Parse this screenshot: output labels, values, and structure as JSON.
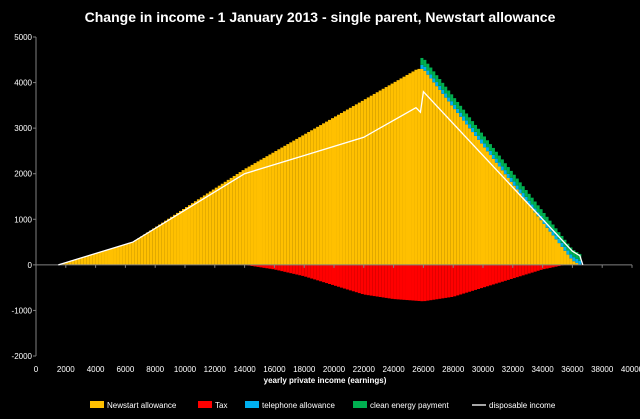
{
  "chart_data": {
    "type": "area",
    "title": "Change in income - 1 January 2013 - single parent, Newstart allowance",
    "xlabel": "yearly private income (earnings)",
    "ylabel": "",
    "xlim": [
      0,
      40000
    ],
    "ylim": [
      -2000,
      5000
    ],
    "x_ticks": [
      0,
      2000,
      4000,
      6000,
      8000,
      10000,
      12000,
      14000,
      16000,
      18000,
      20000,
      22000,
      24000,
      26000,
      28000,
      30000,
      32000,
      34000,
      36000,
      38000,
      40000
    ],
    "y_ticks": [
      -2000,
      -1000,
      0,
      1000,
      2000,
      3000,
      4000,
      5000
    ],
    "grid": false,
    "legend_position": "bottom",
    "series": [
      {
        "name": "Newstart allowance",
        "color": "#FFC000",
        "kind": "stacked-area",
        "x": [
          1500,
          6500,
          14000,
          25600,
          26000,
          36000,
          36500
        ],
        "values": [
          0,
          500,
          2100,
          4300,
          4300,
          100,
          0
        ]
      },
      {
        "name": "Tax",
        "color": "#FF0000",
        "kind": "negative-area",
        "x": [
          14000,
          16000,
          18000,
          20000,
          22000,
          24000,
          26000,
          28000,
          30000,
          32000,
          34000,
          35500
        ],
        "values": [
          0,
          -100,
          -250,
          -450,
          -650,
          -750,
          -800,
          -700,
          -500,
          -300,
          -100,
          0
        ]
      },
      {
        "name": "telephone allowance",
        "color": "#00B0F0",
        "kind": "stacked-area",
        "x": [
          25800,
          36000,
          36500
        ],
        "values": [
          90,
          90,
          90
        ]
      },
      {
        "name": "clean energy payment",
        "color": "#00B050",
        "kind": "stacked-area",
        "x": [
          25800,
          36000,
          36500
        ],
        "values": [
          150,
          150,
          150
        ]
      },
      {
        "name": "disposable income",
        "color": "#FFFFFF",
        "kind": "line",
        "x": [
          1500,
          6500,
          14000,
          18000,
          22000,
          25500,
          25800,
          26000,
          36000,
          36500,
          36700
        ],
        "values": [
          0,
          500,
          2000,
          2400,
          2800,
          3450,
          3350,
          3800,
          300,
          200,
          0
        ]
      }
    ]
  }
}
